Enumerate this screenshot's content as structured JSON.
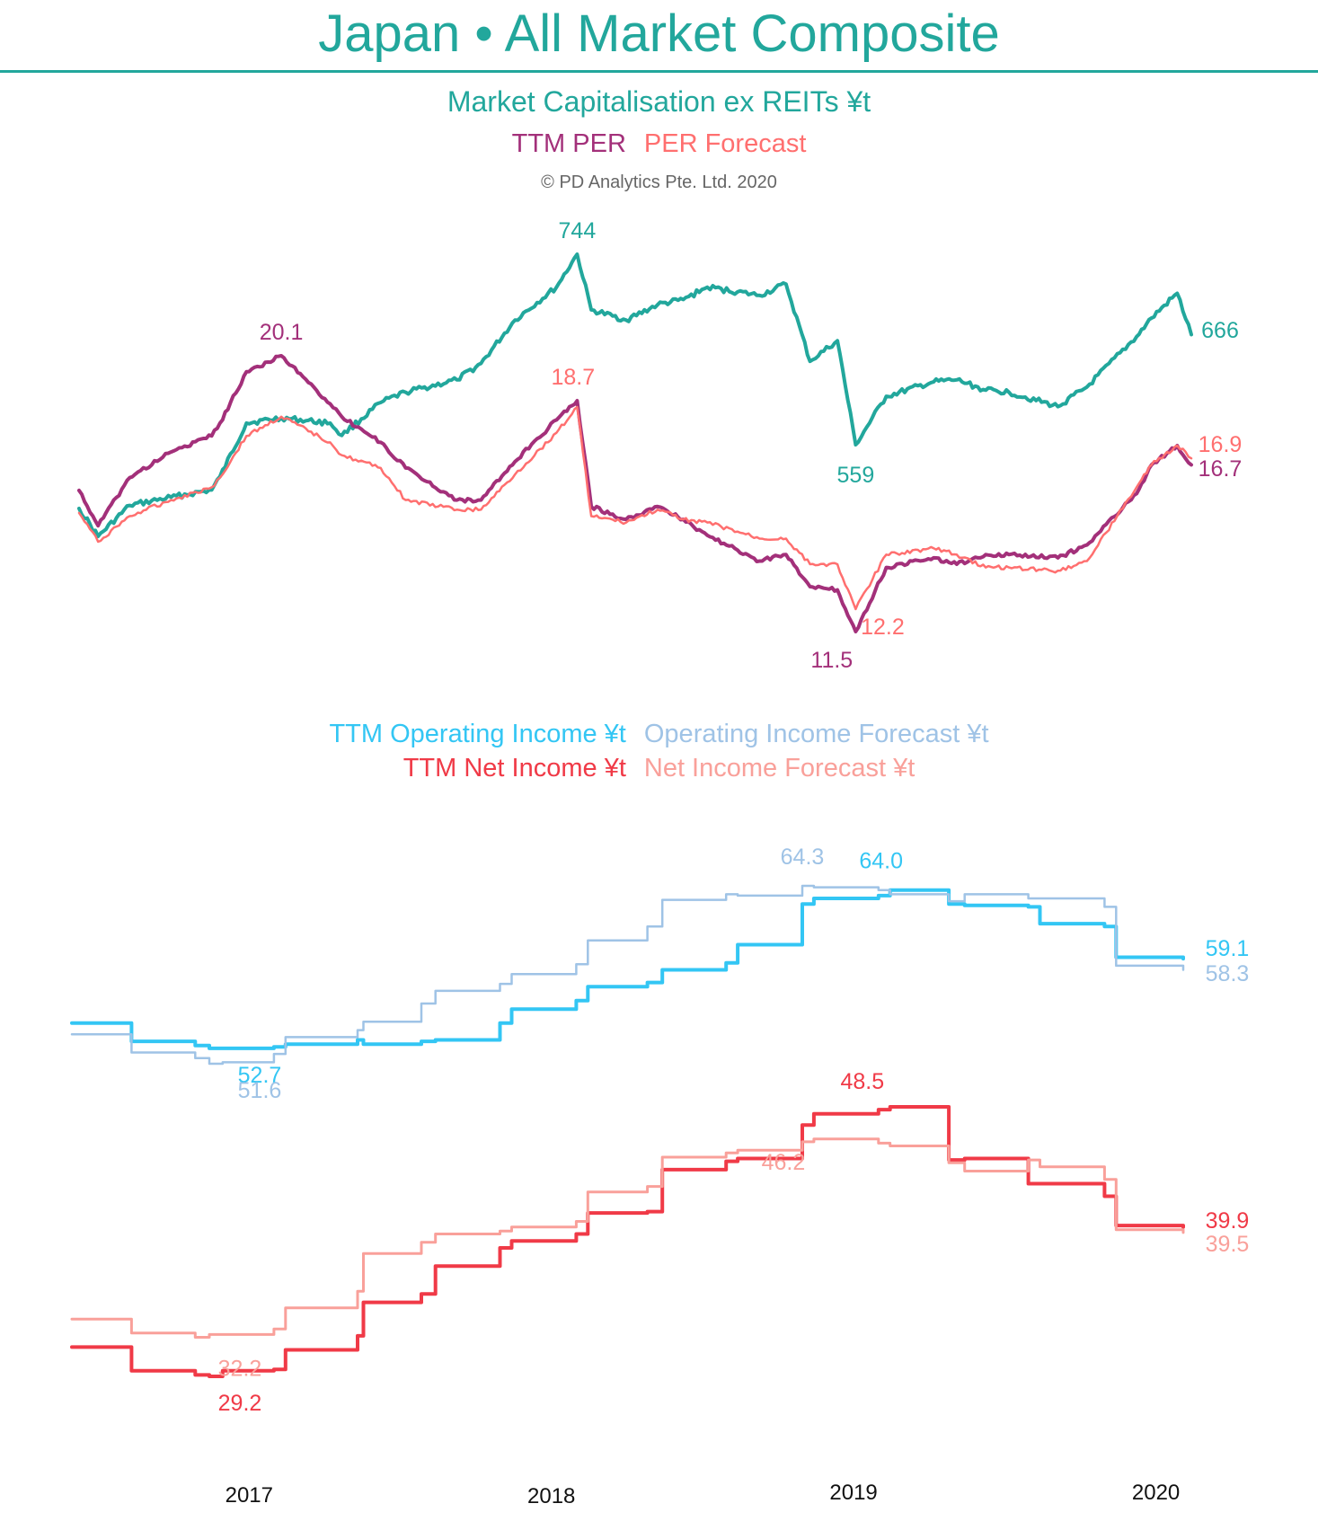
{
  "header": {
    "title": "Japan • All Market Composite"
  },
  "legends": {
    "mcap": "Market Capitalisation ex REITs ¥t",
    "ttm_per": "TTM PER",
    "per_forecast": "PER Forecast",
    "copyright": "© PD Analytics Pte. Ltd. 2020",
    "ttm_op": "TTM Operating Income ¥t",
    "op_forecast": "Operating Income Forecast ¥t",
    "ttm_net": "TTM Net Income ¥t",
    "net_forecast": "Net Income Forecast ¥t"
  },
  "colors": {
    "mcap": "#22a79c",
    "ttm_per": "#a3307a",
    "per_forecast": "#ff6f6f",
    "ttm_op": "#33c6f4",
    "op_forecast": "#9fc3e6",
    "ttm_net": "#f03a47",
    "net_forecast": "#f9a09a"
  },
  "chart_data": [
    {
      "type": "line",
      "panel": "valuation",
      "title": "Market Capitalisation ex REITs ¥t",
      "x_type": "date",
      "series": [
        {
          "key": "mcap",
          "name": "Market Capitalisation ex REITs ¥t",
          "axis": "mcap",
          "x": [
            "2016-06-01",
            "2016-06-24",
            "2016-08-01",
            "2016-09-20",
            "2016-11-08",
            "2016-11-18",
            "2016-12-20",
            "2017-01-31",
            "2017-03-31",
            "2017-04-14",
            "2017-05-31",
            "2017-06-30",
            "2017-08-31",
            "2017-09-29",
            "2017-11-09",
            "2017-12-29",
            "2018-01-23",
            "2018-02-09",
            "2018-03-23",
            "2018-04-30",
            "2018-05-31",
            "2018-06-29",
            "2018-08-31",
            "2018-10-02",
            "2018-10-31",
            "2018-12-03",
            "2018-12-25",
            "2019-01-31",
            "2019-03-29",
            "2019-04-26",
            "2019-05-31",
            "2019-06-28",
            "2019-08-26",
            "2019-09-30",
            "2019-11-29",
            "2019-12-17",
            "2020-01-17",
            "2020-02-03"
          ],
          "y": [
            497,
            470,
            500,
            508,
            515,
            528,
            580,
            585,
            580,
            568,
            600,
            610,
            622,
            638,
            680,
            712,
            744,
            690,
            680,
            695,
            700,
            712,
            704,
            715,
            640,
            660,
            559,
            606,
            620,
            622,
            612,
            610,
            596,
            615,
            664,
            682,
            706,
            666
          ],
          "end_label": "666",
          "annotations": [
            {
              "x": "2018-01-23",
              "y": 744,
              "label": "744"
            },
            {
              "x": "2018-12-25",
              "y": 559,
              "label": "559"
            }
          ]
        },
        {
          "key": "ttm_per",
          "name": "TTM PER",
          "axis": "per",
          "x": [
            "2016-06-01",
            "2016-06-24",
            "2016-08-01",
            "2016-09-20",
            "2016-11-08",
            "2016-11-18",
            "2016-12-20",
            "2017-01-31",
            "2017-03-31",
            "2017-04-14",
            "2017-05-31",
            "2017-06-30",
            "2017-08-31",
            "2017-09-29",
            "2017-11-09",
            "2017-12-29",
            "2018-01-23",
            "2018-02-09",
            "2018-03-23",
            "2018-04-30",
            "2018-05-31",
            "2018-06-29",
            "2018-08-31",
            "2018-10-02",
            "2018-10-31",
            "2018-12-03",
            "2018-12-25",
            "2019-01-31",
            "2019-03-29",
            "2019-04-26",
            "2019-05-31",
            "2019-06-28",
            "2019-08-26",
            "2019-09-30",
            "2019-11-29",
            "2019-12-17",
            "2020-01-17",
            "2020-02-03"
          ],
          "y": [
            15.9,
            14.8,
            16.3,
            17.1,
            17.6,
            18.0,
            19.6,
            20.1,
            18.6,
            18.2,
            17.4,
            16.6,
            15.6,
            15.6,
            16.8,
            18.1,
            18.7,
            15.4,
            15.0,
            15.4,
            15.0,
            14.5,
            13.7,
            13.9,
            12.9,
            12.8,
            11.5,
            13.5,
            13.8,
            13.6,
            13.9,
            13.9,
            13.8,
            14.2,
            15.8,
            16.7,
            17.3,
            16.7
          ],
          "end_label": "16.7",
          "annotations": [
            {
              "x": "2017-01-31",
              "y": 20.1,
              "label": "20.1"
            },
            {
              "x": "2018-12-20",
              "y": 11.5,
              "label": "11.5"
            }
          ]
        },
        {
          "key": "per_forecast",
          "name": "PER Forecast",
          "axis": "per",
          "x": [
            "2016-06-01",
            "2016-06-24",
            "2016-08-01",
            "2016-09-20",
            "2016-11-08",
            "2016-11-18",
            "2016-12-20",
            "2017-01-31",
            "2017-03-31",
            "2017-04-14",
            "2017-05-31",
            "2017-06-30",
            "2017-08-31",
            "2017-09-29",
            "2017-11-09",
            "2017-12-29",
            "2018-01-23",
            "2018-02-09",
            "2018-03-23",
            "2018-04-30",
            "2018-05-31",
            "2018-06-29",
            "2018-08-31",
            "2018-10-02",
            "2018-10-31",
            "2018-12-03",
            "2018-12-25",
            "2019-01-31",
            "2019-03-29",
            "2019-04-26",
            "2019-05-31",
            "2019-06-28",
            "2019-08-26",
            "2019-09-30",
            "2019-11-29",
            "2019-12-17",
            "2020-01-17",
            "2020-02-03"
          ],
          "y": [
            15.2,
            14.3,
            15.1,
            15.6,
            16.0,
            16.3,
            17.6,
            18.2,
            17.4,
            17.0,
            16.6,
            15.6,
            15.3,
            15.3,
            16.4,
            17.7,
            18.5,
            15.1,
            14.9,
            15.3,
            15.0,
            14.9,
            14.4,
            14.4,
            13.6,
            13.6,
            12.2,
            13.9,
            14.1,
            13.9,
            13.5,
            13.5,
            13.4,
            13.7,
            16.0,
            16.7,
            17.3,
            16.9
          ],
          "end_label": "16.9",
          "annotations": [
            {
              "x": "2018-01-18",
              "y": 18.7,
              "label": "18.7"
            },
            {
              "x": "2018-12-25",
              "y": 12.2,
              "label": "12.2"
            }
          ]
        }
      ]
    },
    {
      "type": "line",
      "panel": "earnings",
      "title": "",
      "x_type": "date",
      "x_ticks": [
        "2017",
        "2018",
        "2019",
        "2020"
      ],
      "series": [
        {
          "key": "ttm_op",
          "name": "TTM Operating Income ¥t",
          "axis": "income",
          "x": [
            "2016-06-01",
            "2016-07-29",
            "2016-08-12",
            "2016-10-28",
            "2016-11-14",
            "2016-11-30",
            "2017-01-31",
            "2017-02-14",
            "2017-05-12",
            "2017-05-19",
            "2017-07-28",
            "2017-08-14",
            "2017-10-31",
            "2017-11-14",
            "2018-01-31",
            "2018-02-14",
            "2018-04-27",
            "2018-05-15",
            "2018-07-31",
            "2018-08-14",
            "2018-10-31",
            "2018-11-14",
            "2019-01-31",
            "2019-02-14",
            "2019-04-26",
            "2019-05-15",
            "2019-07-31",
            "2019-08-14",
            "2019-10-31",
            "2019-11-14",
            "2020-02-03"
          ],
          "y": [
            54.5,
            54.5,
            53.2,
            52.9,
            52.7,
            52.7,
            52.8,
            53.0,
            53.3,
            53.0,
            53.2,
            53.3,
            54.5,
            55.5,
            56.1,
            57.1,
            57.4,
            58.3,
            58.8,
            60.1,
            63.0,
            63.4,
            63.6,
            64.0,
            63.0,
            62.9,
            62.8,
            61.6,
            61.4,
            59.2,
            59.1
          ],
          "end_label": "59.1",
          "annotations": [
            {
              "x": "2016-11-14",
              "y": 52.7,
              "label": "52.7"
            },
            {
              "x": "2019-02-14",
              "y": 64.0,
              "label": "64.0"
            }
          ]
        },
        {
          "key": "op_forecast",
          "name": "Operating Income Forecast ¥t",
          "axis": "income",
          "x": [
            "2016-06-01",
            "2016-07-29",
            "2016-08-12",
            "2016-10-28",
            "2016-11-14",
            "2016-11-30",
            "2017-01-31",
            "2017-02-14",
            "2017-05-12",
            "2017-05-19",
            "2017-07-28",
            "2017-08-14",
            "2017-10-31",
            "2017-11-14",
            "2018-01-31",
            "2018-02-14",
            "2018-04-27",
            "2018-05-15",
            "2018-07-31",
            "2018-08-14",
            "2018-10-31",
            "2018-11-14",
            "2019-01-31",
            "2019-02-14",
            "2019-04-26",
            "2019-05-15",
            "2019-07-31",
            "2019-08-14",
            "2019-10-31",
            "2019-11-14",
            "2020-02-03"
          ],
          "y": [
            53.7,
            53.7,
            52.4,
            52.0,
            51.6,
            51.7,
            52.3,
            53.5,
            54.0,
            54.6,
            55.9,
            56.8,
            57.3,
            58.0,
            58.7,
            60.4,
            61.4,
            63.3,
            63.7,
            63.6,
            64.3,
            64.2,
            64.0,
            63.7,
            63.2,
            63.7,
            63.4,
            63.4,
            62.8,
            58.6,
            58.3
          ],
          "end_label": "58.3",
          "annotations": [
            {
              "x": "2016-11-14",
              "y": 51.6,
              "label": "51.6"
            },
            {
              "x": "2018-10-31",
              "y": 64.3,
              "label": "64.3"
            }
          ]
        },
        {
          "key": "ttm_net",
          "name": "TTM Net Income ¥t",
          "axis": "income",
          "x": [
            "2016-06-01",
            "2016-07-29",
            "2016-08-12",
            "2016-10-28",
            "2016-11-14",
            "2016-11-30",
            "2017-01-31",
            "2017-02-14",
            "2017-05-12",
            "2017-05-19",
            "2017-07-28",
            "2017-08-14",
            "2017-10-31",
            "2017-11-14",
            "2018-01-31",
            "2018-02-14",
            "2018-04-27",
            "2018-05-15",
            "2018-07-31",
            "2018-08-14",
            "2018-10-31",
            "2018-11-14",
            "2019-01-31",
            "2019-02-14",
            "2019-04-26",
            "2019-05-15",
            "2019-07-31",
            "2019-08-14",
            "2019-10-31",
            "2019-11-14",
            "2020-02-03"
          ],
          "y": [
            31.3,
            31.3,
            29.6,
            29.3,
            29.2,
            29.6,
            29.7,
            31.1,
            32.1,
            34.5,
            35.1,
            37.1,
            38.4,
            38.9,
            39.4,
            40.9,
            41.0,
            44.0,
            44.6,
            44.8,
            47.2,
            48.0,
            48.3,
            48.5,
            44.7,
            44.8,
            43.0,
            43.0,
            42.1,
            40.0,
            39.9
          ],
          "end_label": "39.9",
          "annotations": [
            {
              "x": "2016-11-14",
              "y": 29.2,
              "label": "29.2"
            },
            {
              "x": "2019-01-31",
              "y": 48.5,
              "label": "48.5"
            }
          ]
        },
        {
          "key": "net_forecast",
          "name": "Net Income Forecast ¥t",
          "axis": "income",
          "x": [
            "2016-06-01",
            "2016-07-29",
            "2016-08-12",
            "2016-10-28",
            "2016-11-14",
            "2016-11-30",
            "2017-01-31",
            "2017-02-14",
            "2017-05-12",
            "2017-05-19",
            "2017-07-28",
            "2017-08-14",
            "2017-10-31",
            "2017-11-14",
            "2018-01-31",
            "2018-02-14",
            "2018-04-27",
            "2018-05-15",
            "2018-07-31",
            "2018-08-14",
            "2018-10-31",
            "2018-11-14",
            "2019-01-31",
            "2019-02-14",
            "2019-04-26",
            "2019-05-15",
            "2019-07-31",
            "2019-08-14",
            "2019-10-31",
            "2019-11-14",
            "2020-02-03"
          ],
          "y": [
            33.3,
            33.3,
            32.3,
            32.0,
            32.2,
            32.2,
            32.6,
            34.1,
            35.3,
            38.0,
            38.8,
            39.4,
            39.6,
            39.9,
            40.3,
            42.4,
            42.8,
            44.9,
            45.2,
            45.4,
            46.0,
            46.2,
            45.9,
            45.7,
            44.5,
            43.9,
            44.7,
            44.2,
            43.3,
            39.7,
            39.5
          ],
          "end_label": "39.5",
          "annotations": [
            {
              "x": "2016-11-14",
              "y": 32.2,
              "label": "32.2"
            },
            {
              "x": "2018-11-14",
              "y": 46.2,
              "label": "46.2"
            }
          ]
        }
      ]
    }
  ]
}
